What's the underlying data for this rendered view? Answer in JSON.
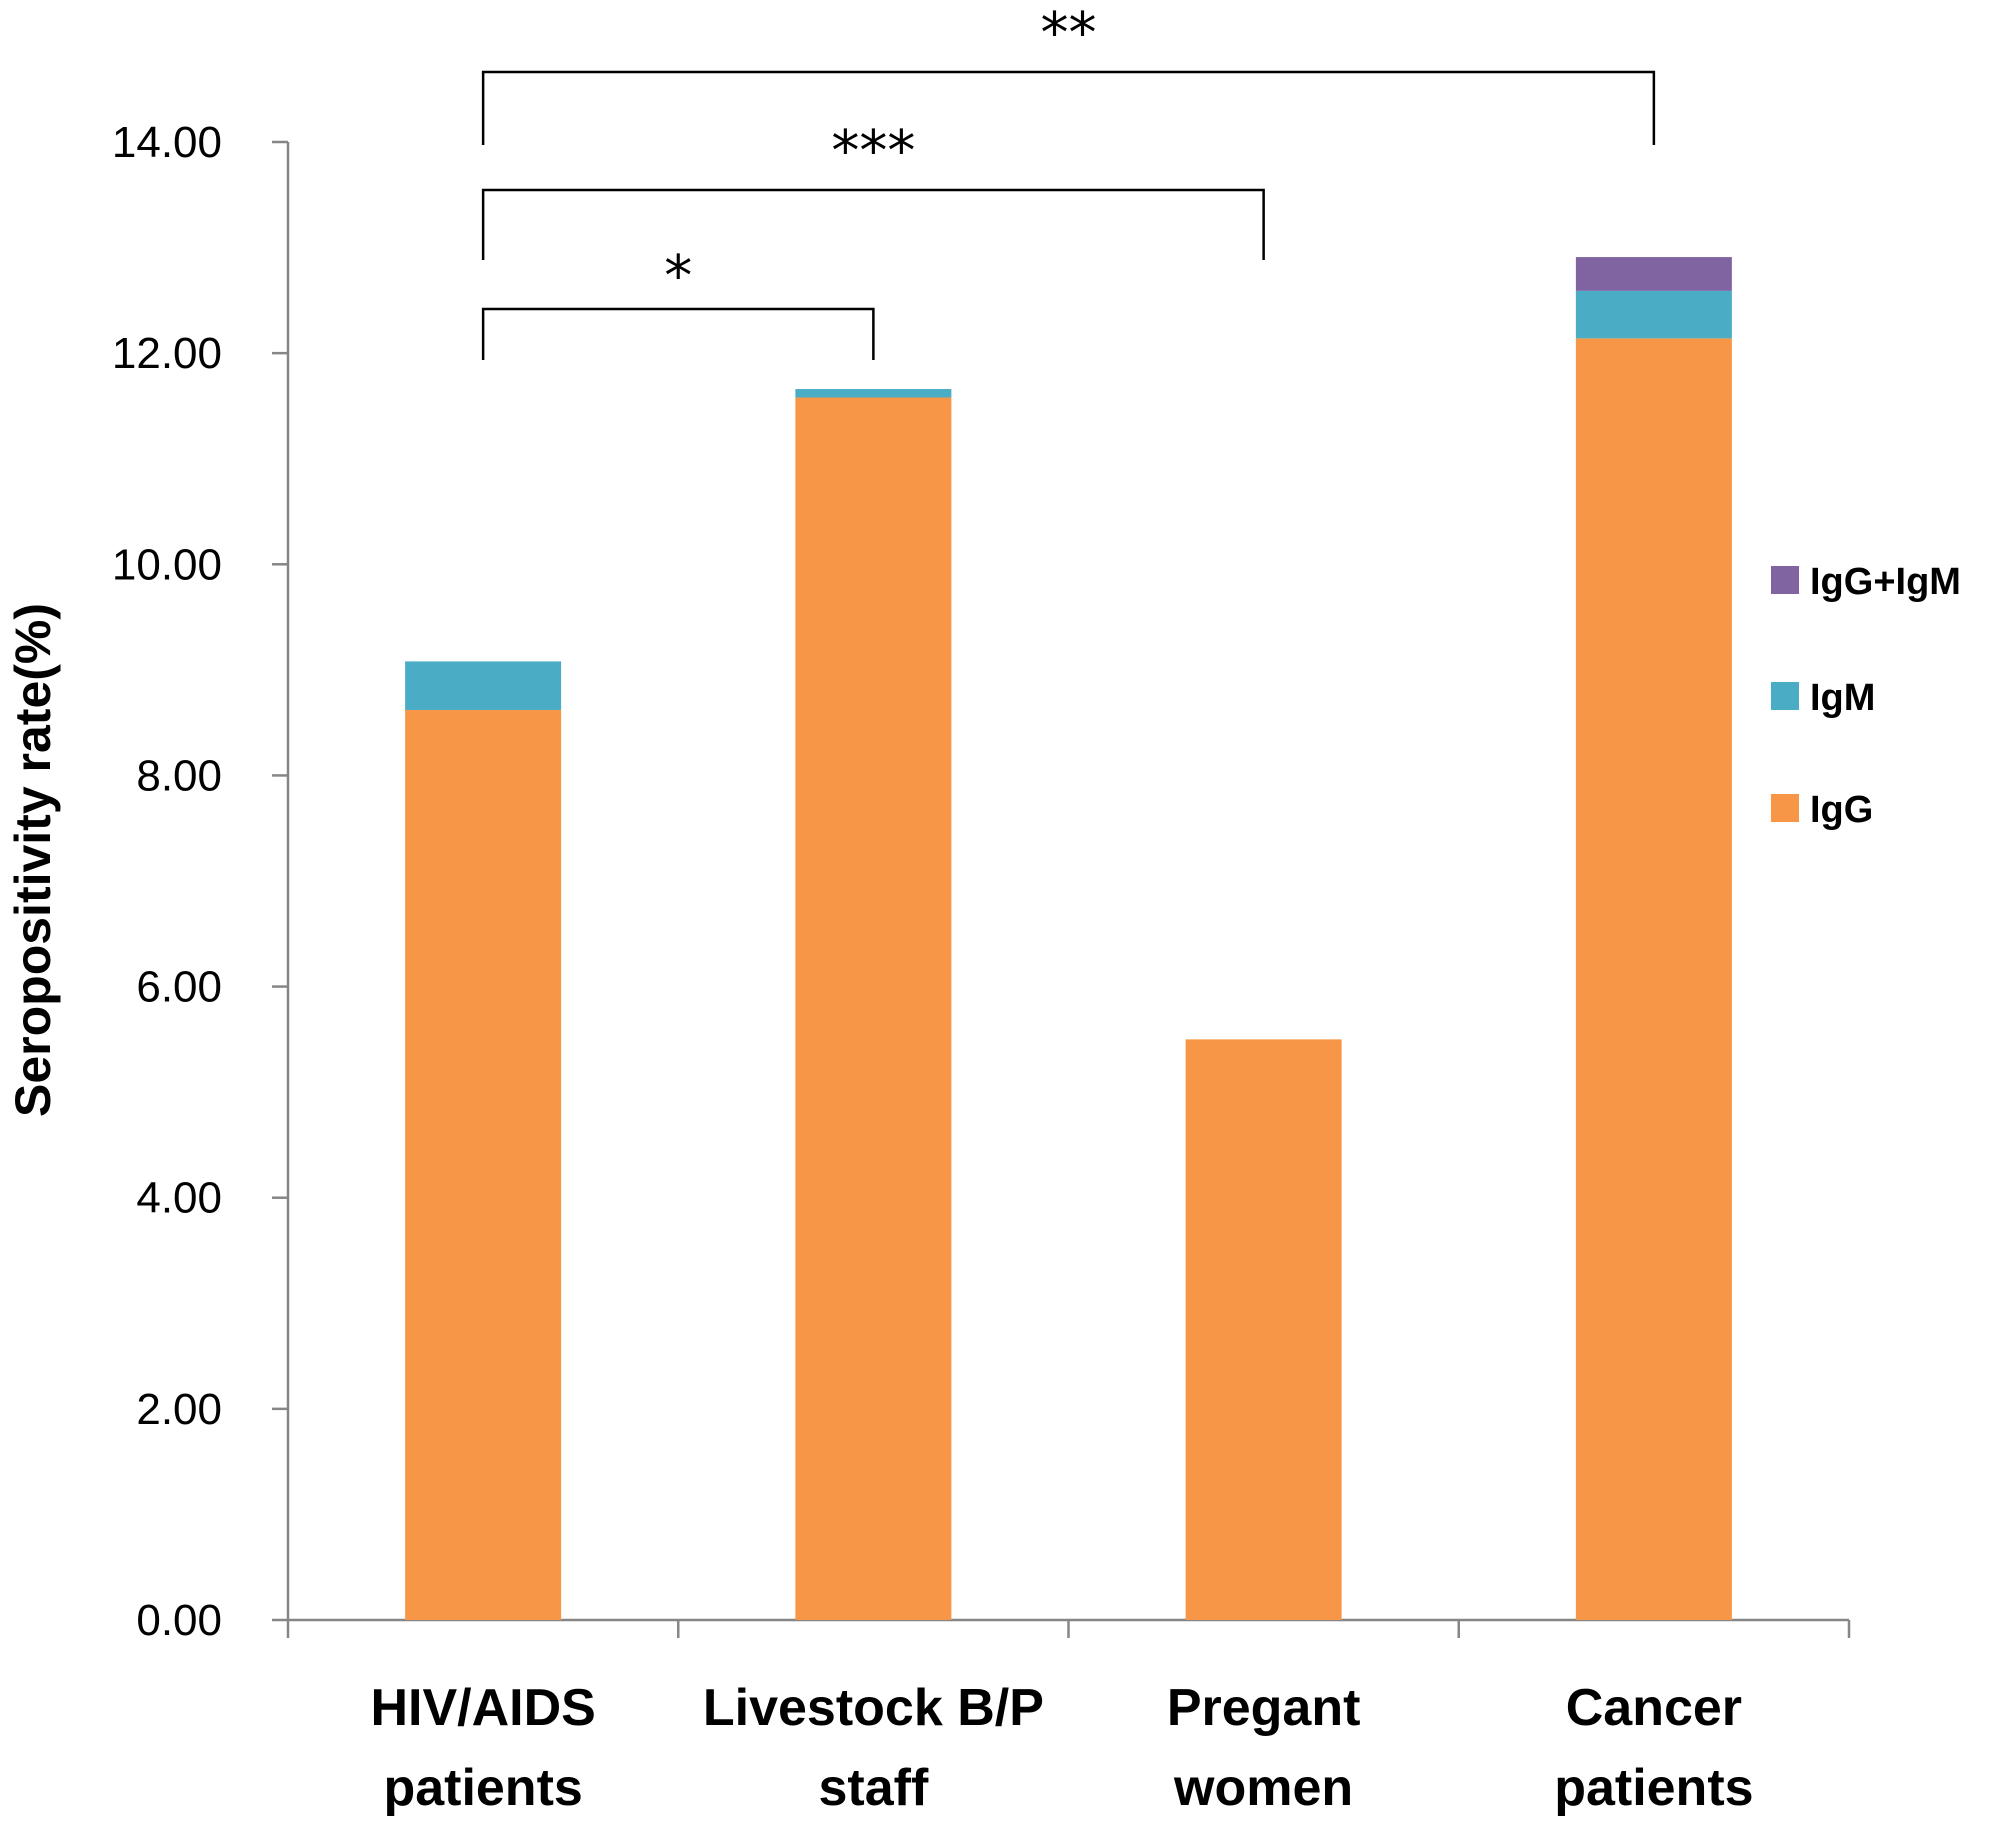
{
  "chart_data": {
    "type": "bar",
    "stacked": true,
    "title": "",
    "xlabel": "",
    "ylabel": "Seropositivity rate(%)",
    "ylim": [
      0,
      14
    ],
    "yticks": [
      "0.00",
      "2.00",
      "4.00",
      "6.00",
      "8.00",
      "10.00",
      "12.00",
      "14.00"
    ],
    "categories": [
      [
        "HIV/AIDS",
        "patients"
      ],
      [
        "Livestock B/P",
        "staff"
      ],
      [
        "Pregant",
        "women"
      ],
      [
        "Cancer",
        "patients"
      ]
    ],
    "series": [
      {
        "name": "IgG",
        "color": "#f79646",
        "values": [
          8.62,
          11.58,
          5.5,
          12.14
        ]
      },
      {
        "name": "IgM",
        "color": "#4bacc6",
        "values": [
          0.46,
          0.08,
          0.0,
          0.45
        ]
      },
      {
        "name": "IgG+IgM",
        "color": "#8064a2",
        "values": [
          0.0,
          0.0,
          0.0,
          0.32
        ]
      }
    ],
    "legend": {
      "position": "right",
      "order": [
        "IgG+IgM",
        "IgM",
        "IgG"
      ]
    },
    "significance": [
      {
        "from": 0,
        "to": 3,
        "label": "**"
      },
      {
        "from": 0,
        "to": 2,
        "label": "***"
      },
      {
        "from": 0,
        "to": 1,
        "label": "*"
      }
    ]
  }
}
